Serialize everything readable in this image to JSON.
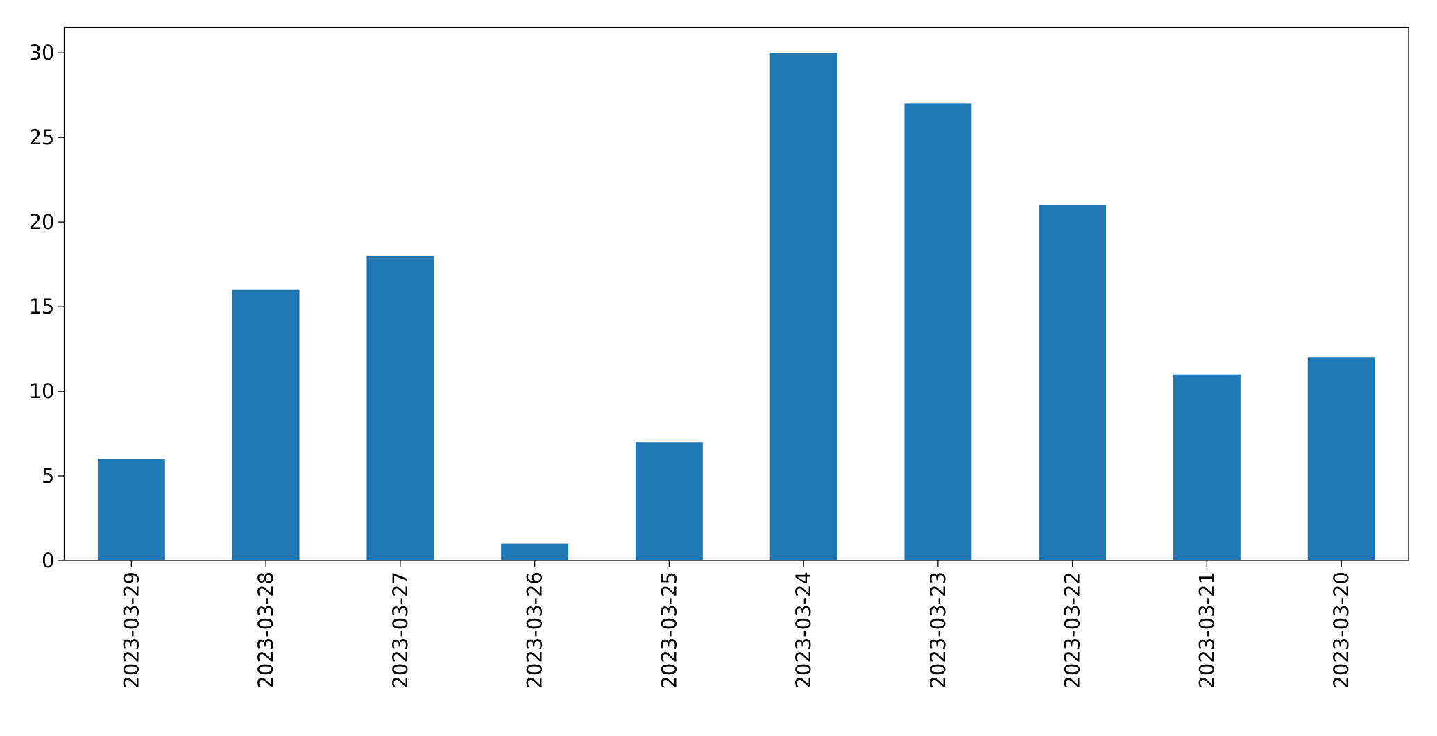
{
  "chart_data": {
    "type": "bar",
    "categories": [
      "2023-03-29",
      "2023-03-28",
      "2023-03-27",
      "2023-03-26",
      "2023-03-25",
      "2023-03-24",
      "2023-03-23",
      "2023-03-22",
      "2023-03-21",
      "2023-03-20"
    ],
    "values": [
      6,
      16,
      18,
      1,
      7,
      30,
      27,
      21,
      11,
      12
    ],
    "color": "#1f77b4",
    "ylim": [
      0,
      31.5
    ],
    "yticks": [
      0,
      5,
      10,
      15,
      20,
      25,
      30
    ],
    "grid": false
  }
}
